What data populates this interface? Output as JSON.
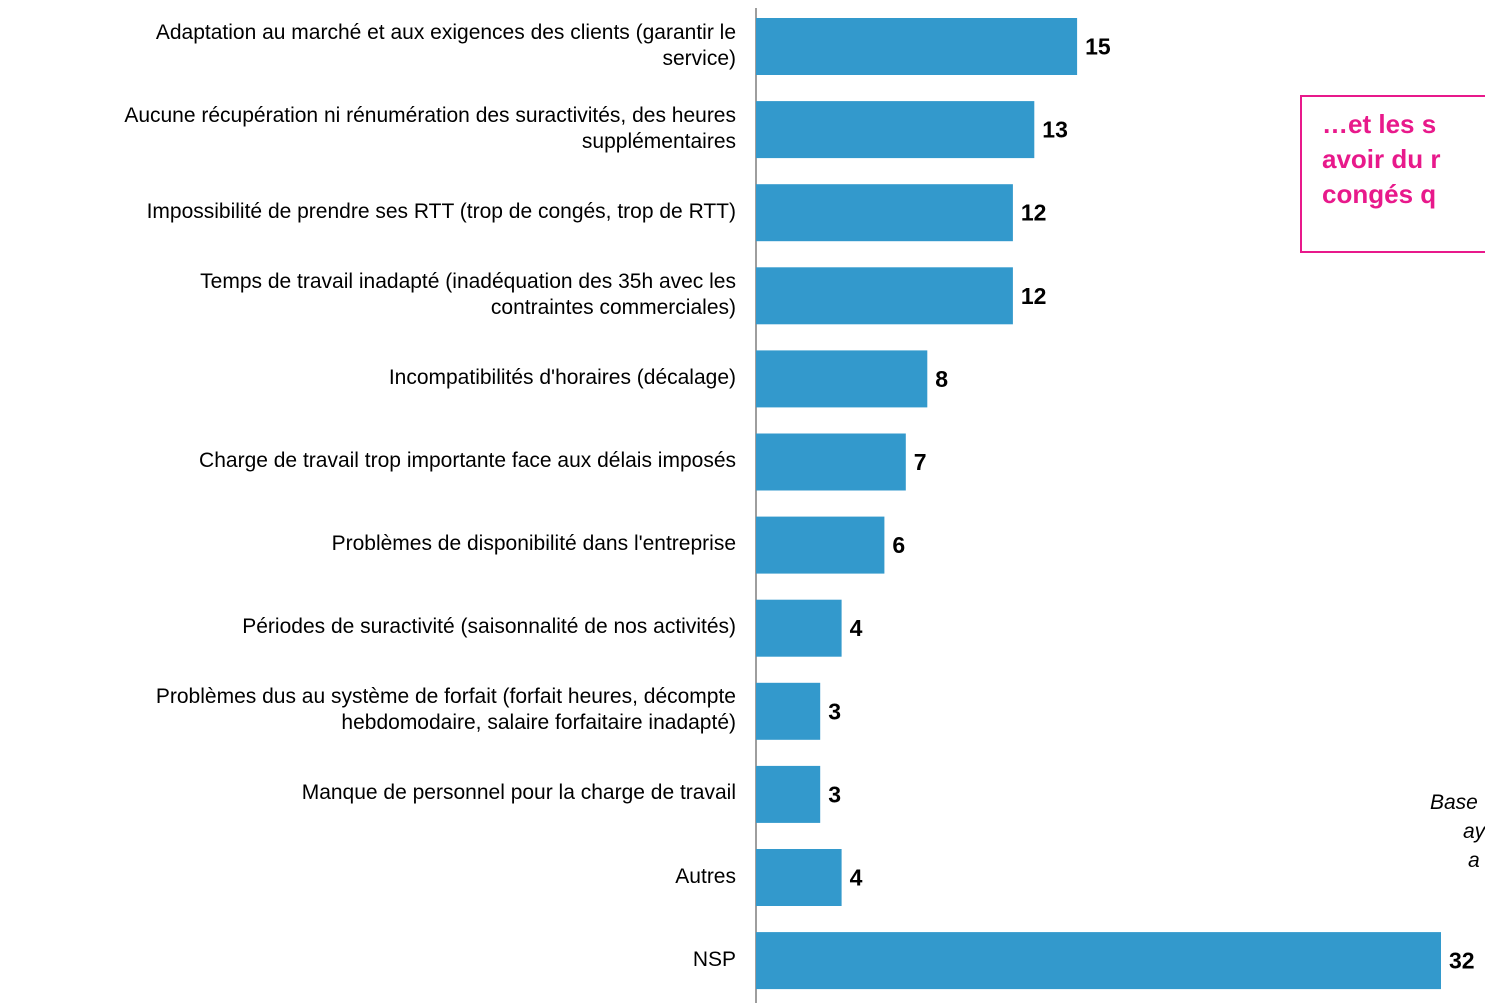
{
  "chart_data": {
    "type": "bar",
    "orientation": "horizontal",
    "categories": [
      "Adaptation au marché et aux exigences des clients (garantir le service)",
      "Aucune récupération ni rénumération des suractivités, des heures supplémentaires",
      "Impossibilité de prendre ses RTT (trop de congés, trop de RTT)",
      "Temps de travail inadapté (inadéquation des 35h avec les contraintes commerciales)",
      "Incompatibilités d'horaires (décalage)",
      "Charge de travail trop importante face aux délais imposés",
      "Problèmes de disponibilité dans l'entreprise",
      "Périodes de suractivité (saisonnalité de nos activités)",
      "Problèmes dus au système de forfait (forfait heures, décompte hebdomodaire, salaire forfaitaire inadapté)",
      "Manque de personnel pour la charge de travail",
      "Autres",
      "NSP"
    ],
    "category_lines": [
      [
        "Adaptation au marché et aux exigences des clients (garantir le",
        "service)"
      ],
      [
        "Aucune récupération ni rénumération des suractivités, des heures",
        "supplémentaires"
      ],
      [
        "Impossibilité de prendre ses RTT (trop de congés, trop de RTT)"
      ],
      [
        "Temps de travail inadapté (inadéquation des 35h avec les",
        "contraintes commerciales)"
      ],
      [
        "Incompatibilités d'horaires (décalage)"
      ],
      [
        "Charge de travail trop importante face aux délais imposés"
      ],
      [
        "Problèmes de disponibilité dans l'entreprise"
      ],
      [
        "Périodes de suractivité (saisonnalité de nos activités)"
      ],
      [
        "Problèmes dus au système de forfait (forfait heures, décompte",
        "hebdomodaire, salaire forfaitaire inadapté)"
      ],
      [
        "Manque de personnel pour la charge de travail"
      ],
      [
        "Autres"
      ],
      [
        "NSP"
      ]
    ],
    "values": [
      15,
      13,
      12,
      12,
      8,
      7,
      6,
      4,
      3,
      3,
      4,
      32
    ],
    "xlim": [
      0,
      32
    ],
    "bar_color": "#3399cc",
    "value_labels": true,
    "grid": false,
    "title": "",
    "xlabel": "",
    "ylabel": ""
  },
  "callout": {
    "lines": [
      "…et les s",
      "avoir du r",
      "congés q"
    ],
    "color": "#e8198b"
  },
  "base_note": {
    "lines": [
      "Base",
      "ay",
      "a"
    ]
  }
}
